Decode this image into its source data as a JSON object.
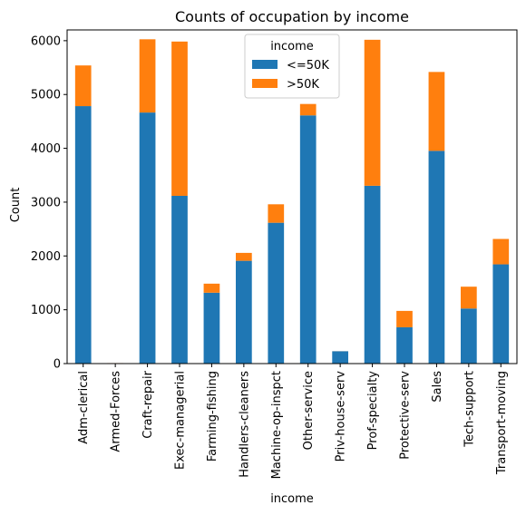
{
  "chart_data": {
    "type": "bar",
    "stacked": true,
    "title": "Counts of occupation by income",
    "xlabel": "income",
    "ylabel": "Count",
    "ylim": [
      0,
      6200
    ],
    "yticks": [
      0,
      1000,
      2000,
      3000,
      4000,
      5000,
      6000
    ],
    "categories": [
      "Adm-clerical",
      "Armed-Forces",
      "Craft-repair",
      "Exec-managerial",
      "Farming-fishing",
      "Handlers-cleaners",
      "Machine-op-inspct",
      "Other-service",
      "Priv-house-serv",
      "Prof-specialty",
      "Protective-serv",
      "Sales",
      "Tech-support",
      "Transport-moving"
    ],
    "series": [
      {
        "name": "<=50K",
        "color": "#1f77b4",
        "values": [
          4784,
          8,
          4665,
          3117,
          1317,
          1910,
          2617,
          4612,
          229,
          3304,
          675,
          3953,
          1023,
          1844
        ]
      },
      {
        "name": ">50K",
        "color": "#ff7f0e",
        "values": [
          756,
          1,
          1361,
          2867,
          168,
          147,
          343,
          212,
          1,
          2713,
          304,
          1466,
          406,
          472
        ]
      }
    ],
    "legend": {
      "title": "income",
      "position": "top-center"
    },
    "grid": false
  }
}
